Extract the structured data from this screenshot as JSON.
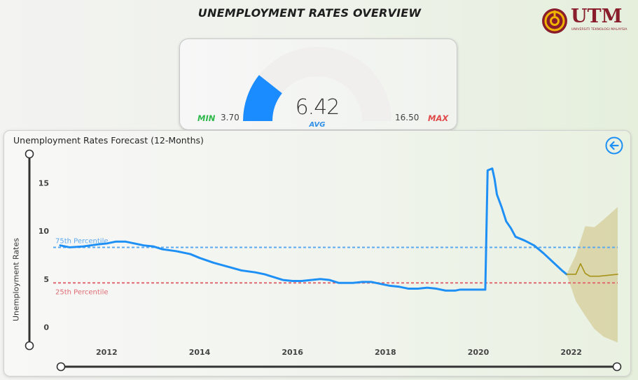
{
  "header": {
    "title": "UNEMPLOYMENT RATES OVERVIEW",
    "logo_text": "UTM",
    "logo_subtitle": "UNIVERSITI TEKNOLOGI MALAYSIA"
  },
  "gauge": {
    "min_label": "MIN",
    "min_value": "3.70",
    "max_label": "MAX",
    "max_value": "16.50",
    "avg_value": "6.42",
    "avg_label": "AVG",
    "fill_fraction": 0.213,
    "colors": {
      "fill": "#1a8cff",
      "track": "#f0efee"
    }
  },
  "chart": {
    "title": "Unemployment Rates Forecast (12-Months)",
    "ylabel": "Unemployment Rates"
  },
  "chart_data": {
    "type": "line",
    "title": "Unemployment Rates Forecast (12-Months)",
    "xlabel": "",
    "ylabel": "Unemployment Rates",
    "xlim": [
      2011.0,
      2023.0
    ],
    "ylim": [
      -2,
      17.5
    ],
    "x_ticks": [
      "2012",
      "2014",
      "2016",
      "2018",
      "2020",
      "2022"
    ],
    "y_ticks": [
      "0",
      "5",
      "10",
      "15"
    ],
    "grid": false,
    "reference_lines": [
      {
        "name": "75th Percentile",
        "value": 8.3,
        "color": "#5aa9f0"
      },
      {
        "name": "25th Percentile",
        "value": 4.6,
        "color": "#e06a72"
      }
    ],
    "series": [
      {
        "color": "#1e90f5",
        "x": [
          2011.0,
          2011.2,
          2011.5,
          2011.8,
          2012.0,
          2012.2,
          2012.4,
          2012.6,
          2012.8,
          2013.0,
          2013.2,
          2013.5,
          2013.8,
          2014.0,
          2014.3,
          2014.6,
          2014.9,
          2015.2,
          2015.4,
          2015.6,
          2015.8,
          2016.0,
          2016.2,
          2016.4,
          2016.6,
          2016.8,
          2017.0,
          2017.3,
          2017.5,
          2017.7,
          2017.9,
          2018.1,
          2018.3,
          2018.5,
          2018.7,
          2018.9,
          2019.1,
          2019.3,
          2019.5,
          2019.6,
          2019.8,
          2020.0,
          2020.15,
          2020.2,
          2020.3,
          2020.35,
          2020.4,
          2020.5,
          2020.6,
          2020.7,
          2020.8,
          2021.0,
          2021.2,
          2021.4,
          2021.6,
          2021.8,
          2021.9
        ],
        "values": [
          8.5,
          8.3,
          8.4,
          8.6,
          8.7,
          8.9,
          8.9,
          8.7,
          8.5,
          8.4,
          8.1,
          7.9,
          7.6,
          7.2,
          6.7,
          6.3,
          5.9,
          5.7,
          5.5,
          5.2,
          4.9,
          4.8,
          4.8,
          4.9,
          5.0,
          4.9,
          4.6,
          4.6,
          4.7,
          4.7,
          4.5,
          4.3,
          4.2,
          4.0,
          4.0,
          4.1,
          4.0,
          3.8,
          3.8,
          3.9,
          3.9,
          3.9,
          3.9,
          16.3,
          16.5,
          15.4,
          13.8,
          12.5,
          11.0,
          10.3,
          9.4,
          9.0,
          8.5,
          7.7,
          6.8,
          5.9,
          5.5
        ]
      },
      {
        "color": "#a69318",
        "x": [
          2021.9,
          2022.1,
          2022.2,
          2022.3,
          2022.4,
          2022.6,
          2022.8,
          2023.0
        ],
        "values": [
          5.5,
          5.5,
          6.6,
          5.6,
          5.3,
          5.3,
          5.4,
          5.5
        ]
      }
    ],
    "forecast_band": {
      "color": "#d2c88f",
      "x": [
        2021.9,
        2022.1,
        2022.3,
        2022.5,
        2022.7,
        2023.0
      ],
      "lower": [
        5.5,
        2.7,
        1.2,
        -0.2,
        -1.0,
        -1.6
      ],
      "upper": [
        5.5,
        7.5,
        10.5,
        10.4,
        11.2,
        12.5
      ]
    }
  }
}
